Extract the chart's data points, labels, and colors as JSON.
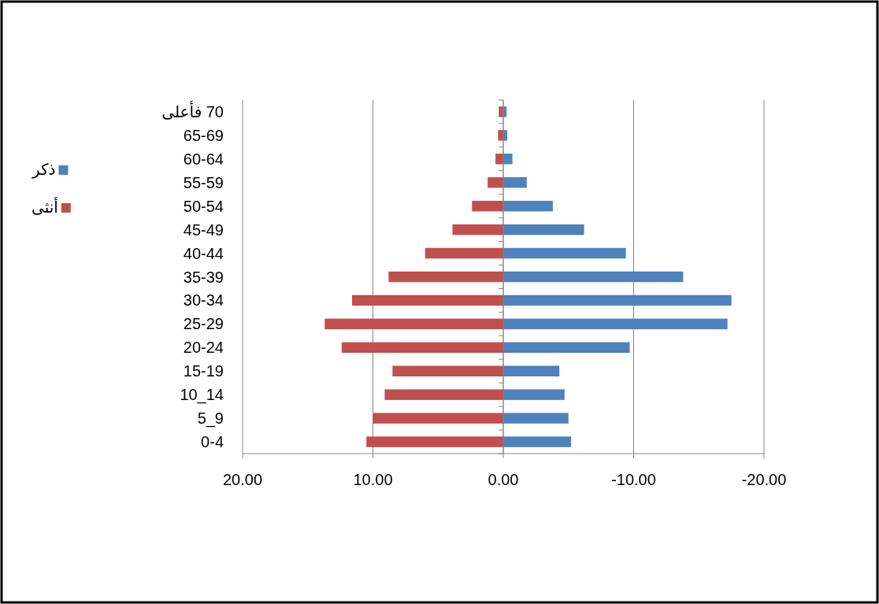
{
  "chart_data": {
    "type": "bar",
    "orientation": "horizontal",
    "stacked": true,
    "categories": [
      "70 فأعلى",
      "65-69",
      "60-64",
      "55-59",
      "50-54",
      "45-49",
      "40-44",
      "35-39",
      "30-34",
      "25-29",
      "20-24",
      "15-19",
      "10_14",
      "5_9",
      "0-4"
    ],
    "series": [
      {
        "name": "ذكر",
        "color": "#4f81bd",
        "values": [
          -0.25,
          -0.3,
          -0.7,
          -1.8,
          -3.8,
          -6.2,
          -9.4,
          -13.8,
          -17.5,
          -17.2,
          -9.7,
          -4.3,
          -4.7,
          -5.0,
          -5.2
        ]
      },
      {
        "name": "أنثى",
        "color": "#c0504d",
        "values": [
          0.35,
          0.4,
          0.6,
          1.2,
          2.4,
          3.9,
          6.0,
          8.8,
          11.6,
          13.7,
          12.4,
          8.5,
          9.1,
          10.0,
          10.5
        ]
      }
    ],
    "xlim": [
      20,
      -20
    ],
    "xticks": [
      {
        "value": 20,
        "label": "20.00"
      },
      {
        "value": 10,
        "label": "10.00"
      },
      {
        "value": 0,
        "label": "0.00"
      },
      {
        "value": -10,
        "label": "-10.00"
      },
      {
        "value": -20,
        "label": "-20.00"
      }
    ],
    "grid": "x",
    "legend": "left"
  }
}
